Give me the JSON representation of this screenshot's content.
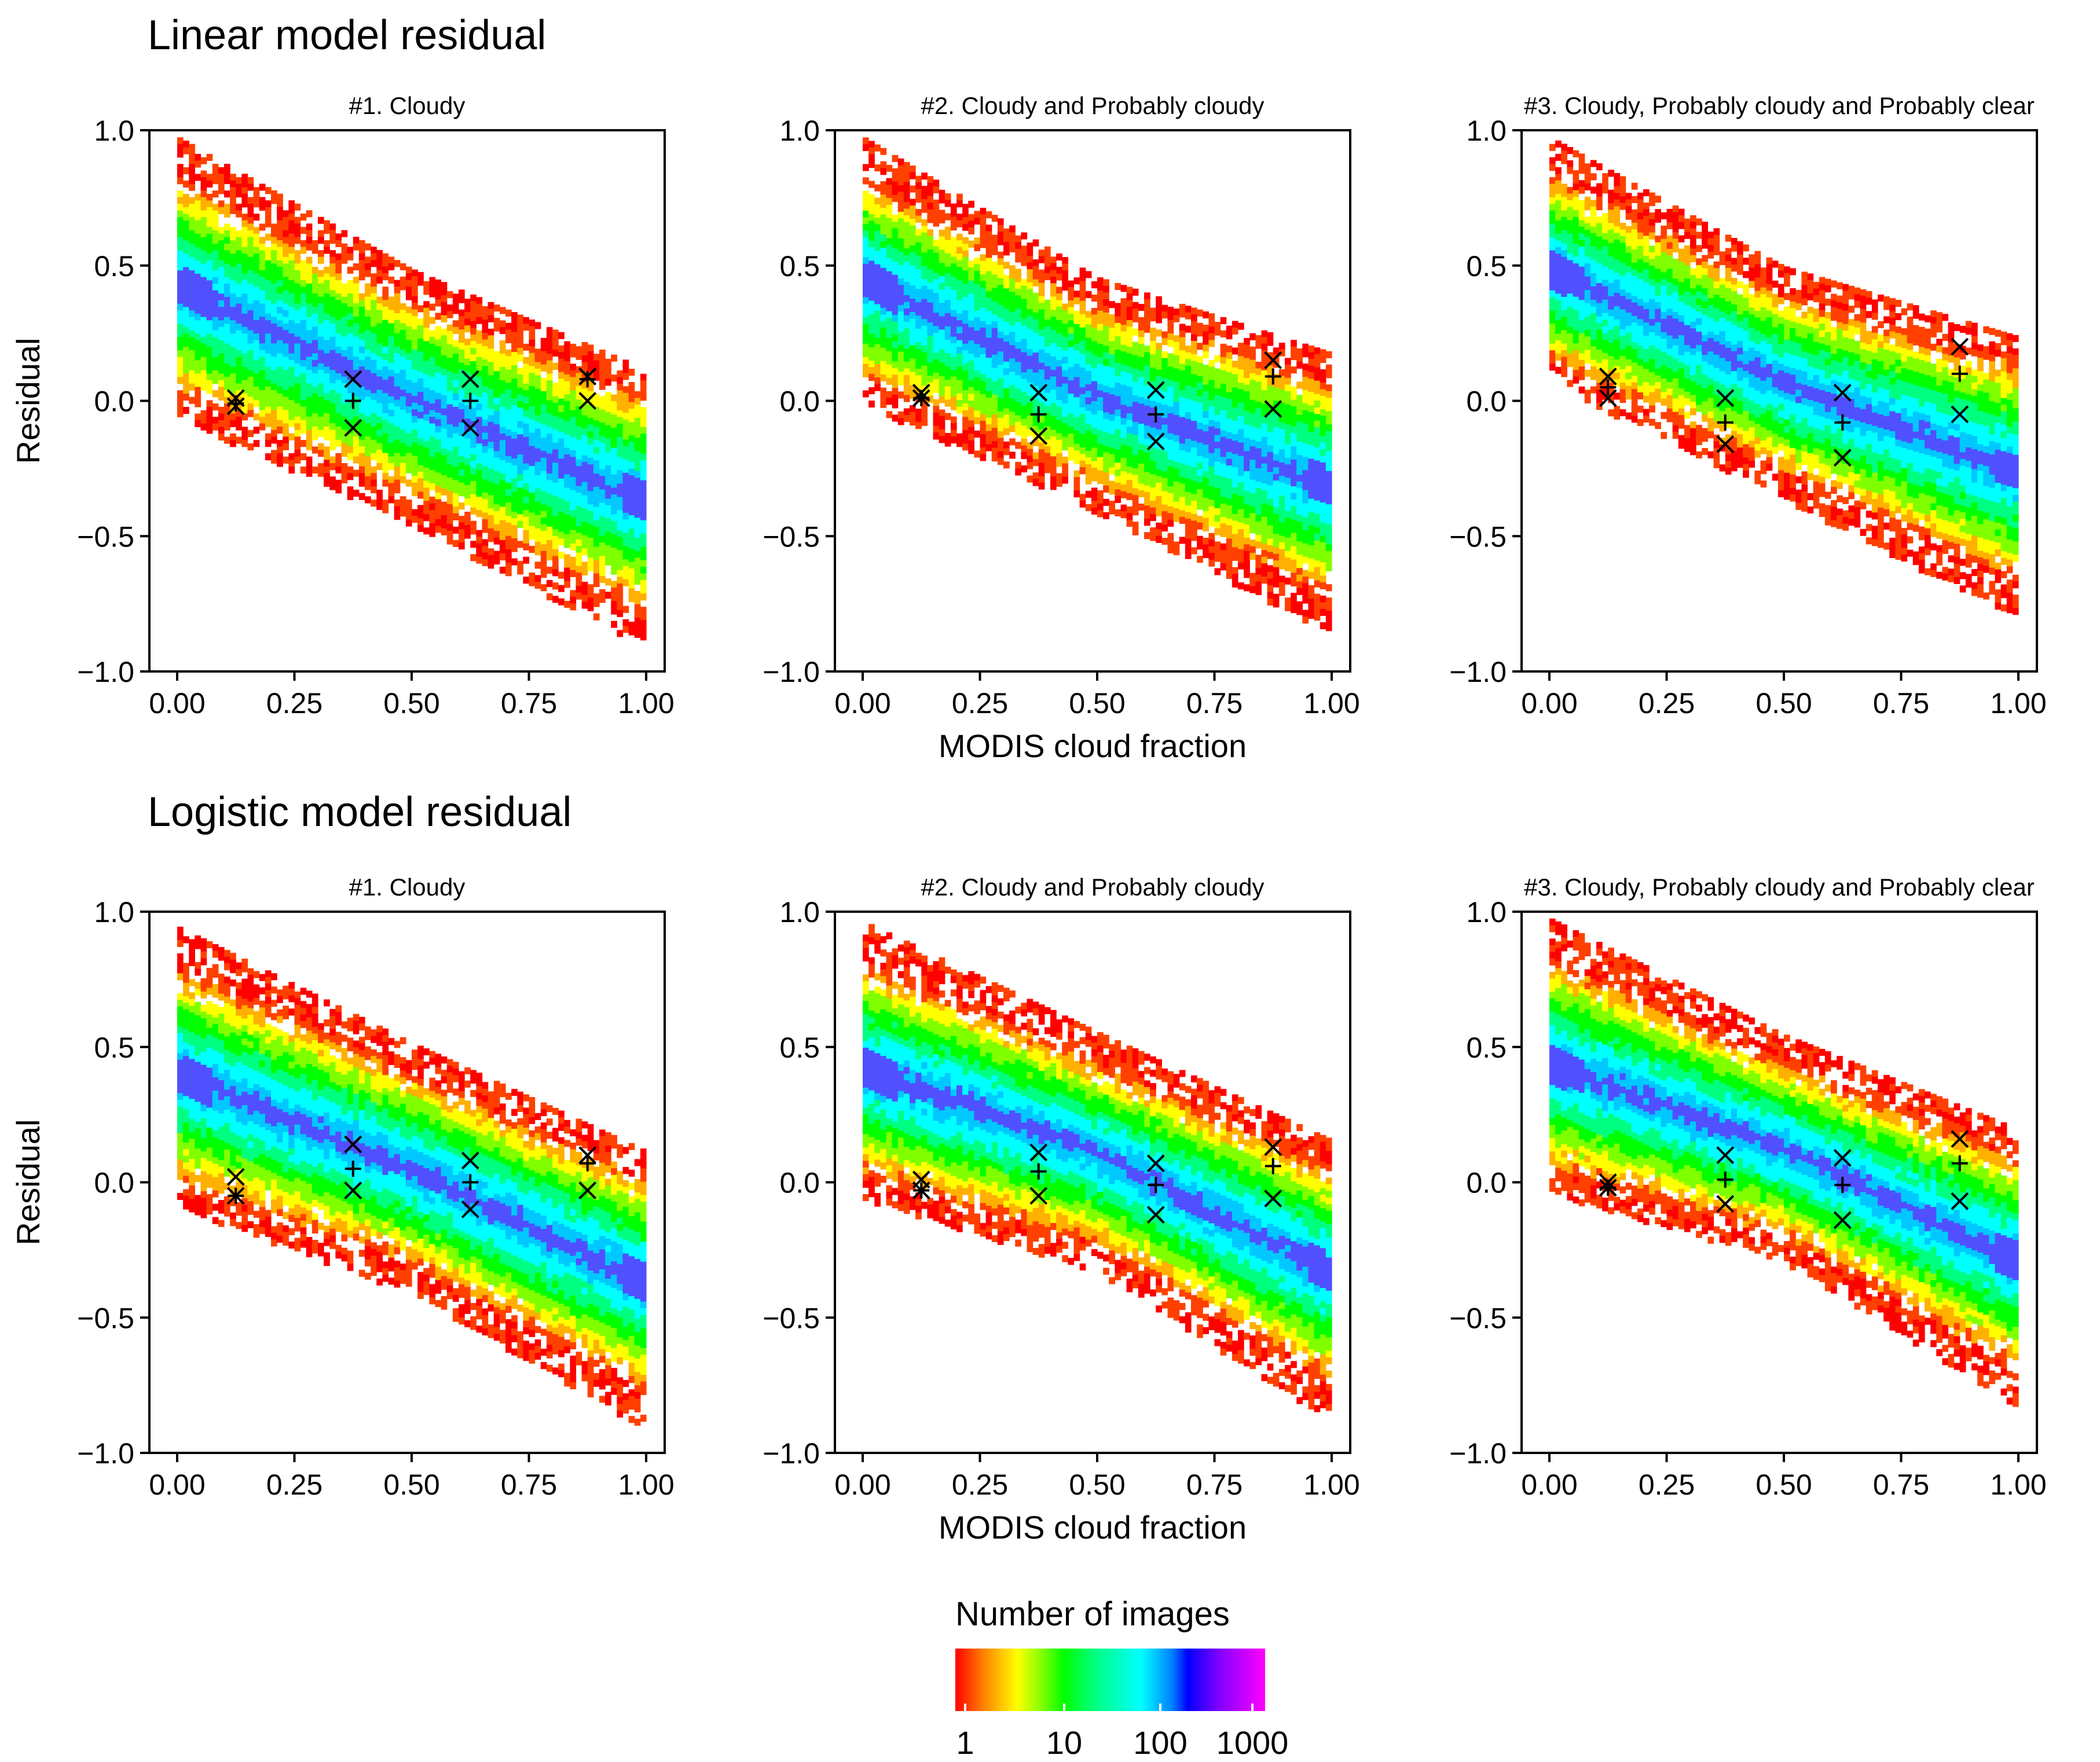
{
  "sections": {
    "linear_title": "Linear model residual",
    "logistic_title": "Logistic model residual"
  },
  "axis_labels": {
    "y": "Residual",
    "x": "MODIS cloud fraction"
  },
  "legend": {
    "title": "Number of images",
    "labels": [
      "1",
      "10",
      "100",
      "1000"
    ],
    "colors": [
      "#ff0000",
      "#ffff00",
      "#00ff00",
      "#00ffff",
      "#0000ff",
      "#ff00ff"
    ]
  },
  "chart_data": [
    {
      "type": "heatmap",
      "model": "linear",
      "title": "#1. Cloudy",
      "xlabel": "",
      "ylabel": "Residual",
      "xlim": [
        0,
        1
      ],
      "ylim": [
        -1,
        1
      ],
      "xticks": [
        "0.00",
        "0.25",
        "0.50",
        "0.75",
        "1.00"
      ],
      "yticks": [
        "1.0",
        "0.5",
        "0.0",
        "−0.5",
        "−1.0"
      ],
      "envelope": {
        "upper": [
          [
            0,
            0.98
          ],
          [
            0.5,
            0.49
          ],
          [
            1.0,
            0.12
          ]
        ],
        "lower": [
          [
            0,
            -0.05
          ],
          [
            0.5,
            -0.45
          ],
          [
            1.0,
            -0.9
          ]
        ]
      },
      "markers": [
        {
          "x": 0.125,
          "median": -0.01,
          "q1": -0.02,
          "q3": 0.01
        },
        {
          "x": 0.375,
          "median": 0.0,
          "q1": -0.1,
          "q3": 0.08
        },
        {
          "x": 0.625,
          "median": 0.0,
          "q1": -0.1,
          "q3": 0.08
        },
        {
          "x": 0.875,
          "median": 0.08,
          "q1": 0.0,
          "q3": 0.09
        }
      ]
    },
    {
      "type": "heatmap",
      "model": "linear",
      "title": "#2. Cloudy and Probably cloudy",
      "xlabel": "MODIS cloud fraction",
      "ylabel": "",
      "xlim": [
        0,
        1
      ],
      "ylim": [
        -1,
        1
      ],
      "xticks": [
        "0.00",
        "0.25",
        "0.50",
        "0.75",
        "1.00"
      ],
      "yticks": [
        "1.0",
        "0.5",
        "0.0",
        "−0.5",
        "−1.0"
      ],
      "envelope": {
        "upper": [
          [
            0,
            0.98
          ],
          [
            0.5,
            0.46
          ],
          [
            1.0,
            0.18
          ]
        ],
        "lower": [
          [
            0,
            0.0
          ],
          [
            0.5,
            -0.4
          ],
          [
            1.0,
            -0.85
          ]
        ]
      },
      "markers": [
        {
          "x": 0.125,
          "median": 0.01,
          "q1": 0.01,
          "q3": 0.03
        },
        {
          "x": 0.375,
          "median": -0.05,
          "q1": -0.13,
          "q3": 0.03
        },
        {
          "x": 0.625,
          "median": -0.05,
          "q1": -0.15,
          "q3": 0.04
        },
        {
          "x": 0.875,
          "median": 0.09,
          "q1": -0.03,
          "q3": 0.15
        }
      ]
    },
    {
      "type": "heatmap",
      "model": "linear",
      "title": "#3. Cloudy, Probably cloudy and Probably clear",
      "xlabel": "",
      "ylabel": "",
      "xlim": [
        0,
        1
      ],
      "ylim": [
        -1,
        1
      ],
      "xticks": [
        "0.00",
        "0.25",
        "0.50",
        "0.75",
        "1.00"
      ],
      "yticks": [
        "1.0",
        "0.5",
        "0.0",
        "−0.5",
        "−1.0"
      ],
      "envelope": {
        "upper": [
          [
            0,
            0.98
          ],
          [
            0.5,
            0.5
          ],
          [
            1.0,
            0.24
          ]
        ],
        "lower": [
          [
            0,
            0.08
          ],
          [
            0.5,
            -0.35
          ],
          [
            1.0,
            -0.8
          ]
        ]
      },
      "markers": [
        {
          "x": 0.125,
          "median": 0.05,
          "q1": 0.01,
          "q3": 0.09
        },
        {
          "x": 0.375,
          "median": -0.08,
          "q1": -0.16,
          "q3": 0.01
        },
        {
          "x": 0.625,
          "median": -0.08,
          "q1": -0.21,
          "q3": 0.03
        },
        {
          "x": 0.875,
          "median": 0.1,
          "q1": -0.05,
          "q3": 0.2
        }
      ]
    },
    {
      "type": "heatmap",
      "model": "logistic",
      "title": "#1. Cloudy",
      "xlabel": "",
      "ylabel": "Residual",
      "xlim": [
        0,
        1
      ],
      "ylim": [
        -1,
        1
      ],
      "xticks": [
        "0.00",
        "0.25",
        "0.50",
        "0.75",
        "1.00"
      ],
      "yticks": [
        "1.0",
        "0.5",
        "0.0",
        "−0.5",
        "−1.0"
      ],
      "envelope": {
        "upper": [
          [
            0,
            0.95
          ],
          [
            0.5,
            0.52
          ],
          [
            1.0,
            0.12
          ]
        ],
        "lower": [
          [
            0,
            -0.08
          ],
          [
            0.5,
            -0.4
          ],
          [
            1.0,
            -0.9
          ]
        ]
      },
      "markers": [
        {
          "x": 0.125,
          "median": -0.05,
          "q1": -0.05,
          "q3": 0.02
        },
        {
          "x": 0.375,
          "median": 0.05,
          "q1": -0.03,
          "q3": 0.14
        },
        {
          "x": 0.625,
          "median": 0.0,
          "q1": -0.1,
          "q3": 0.08
        },
        {
          "x": 0.875,
          "median": 0.07,
          "q1": -0.03,
          "q3": 0.1
        }
      ]
    },
    {
      "type": "heatmap",
      "model": "logistic",
      "title": "#2. Cloudy and Probably cloudy",
      "xlabel": "MODIS cloud fraction",
      "ylabel": "",
      "xlim": [
        0,
        1
      ],
      "ylim": [
        -1,
        1
      ],
      "xticks": [
        "0.00",
        "0.25",
        "0.50",
        "0.75",
        "1.00"
      ],
      "yticks": [
        "1.0",
        "0.5",
        "0.0",
        "−0.5",
        "−1.0"
      ],
      "envelope": {
        "upper": [
          [
            0,
            0.97
          ],
          [
            0.5,
            0.56
          ],
          [
            1.0,
            0.16
          ]
        ],
        "lower": [
          [
            0,
            -0.05
          ],
          [
            0.5,
            -0.32
          ],
          [
            1.0,
            -0.87
          ]
        ]
      },
      "markers": [
        {
          "x": 0.125,
          "median": -0.03,
          "q1": -0.03,
          "q3": 0.01
        },
        {
          "x": 0.375,
          "median": 0.04,
          "q1": -0.05,
          "q3": 0.11
        },
        {
          "x": 0.625,
          "median": -0.01,
          "q1": -0.12,
          "q3": 0.07
        },
        {
          "x": 0.875,
          "median": 0.06,
          "q1": -0.06,
          "q3": 0.13
        }
      ]
    },
    {
      "type": "heatmap",
      "model": "logistic",
      "title": "#3. Cloudy, Probably cloudy and Probably clear",
      "xlabel": "",
      "ylabel": "",
      "xlim": [
        0,
        1
      ],
      "ylim": [
        -1,
        1
      ],
      "xticks": [
        "0.00",
        "0.25",
        "0.50",
        "0.75",
        "1.00"
      ],
      "yticks": [
        "1.0",
        "0.5",
        "0.0",
        "−0.5",
        "−1.0"
      ],
      "envelope": {
        "upper": [
          [
            0,
            0.98
          ],
          [
            0.5,
            0.55
          ],
          [
            1.0,
            0.2
          ]
        ],
        "lower": [
          [
            0,
            -0.03
          ],
          [
            0.5,
            -0.28
          ],
          [
            1.0,
            -0.82
          ]
        ]
      },
      "markers": [
        {
          "x": 0.125,
          "median": -0.02,
          "q1": -0.02,
          "q3": 0.0
        },
        {
          "x": 0.375,
          "median": 0.01,
          "q1": -0.08,
          "q3": 0.1
        },
        {
          "x": 0.625,
          "median": -0.01,
          "q1": -0.14,
          "q3": 0.09
        },
        {
          "x": 0.875,
          "median": 0.07,
          "q1": -0.07,
          "q3": 0.16
        }
      ]
    }
  ]
}
